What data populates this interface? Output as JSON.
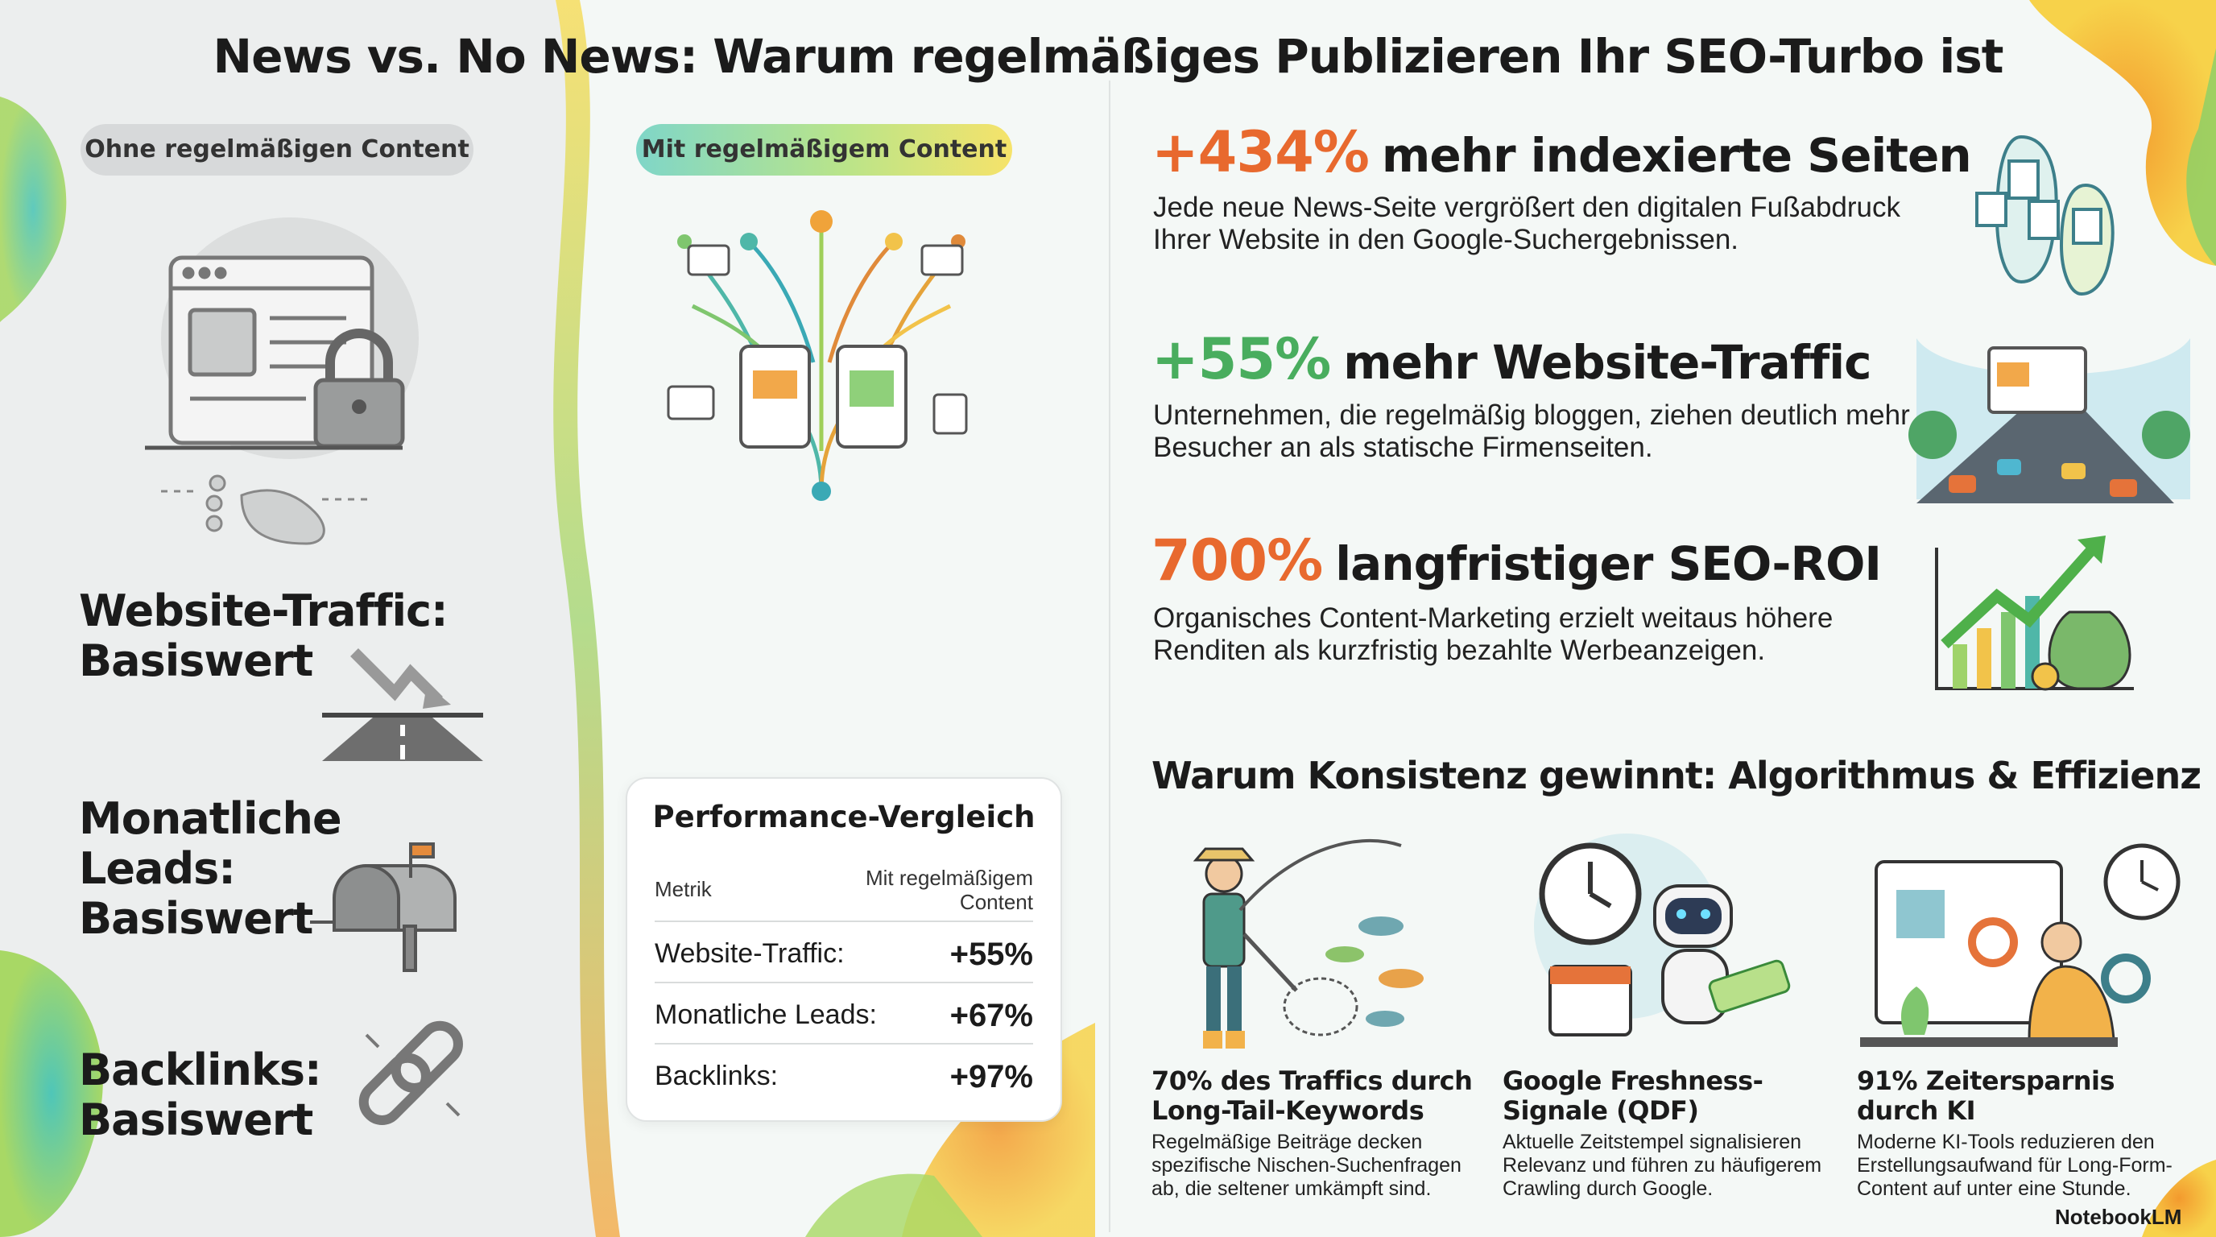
{
  "title": "News vs. No News: Warum regelmäßiges Publizieren Ihr SEO-Turbo ist",
  "left": {
    "badge": "Ohne regelmäßigen Content",
    "items": [
      {
        "label": "Website-Traffic:",
        "value": "Basiswert"
      },
      {
        "label": "Monatliche Leads:",
        "value": "Basiswert"
      },
      {
        "label": "Backlinks:",
        "value": "Basiswert"
      }
    ]
  },
  "middle": {
    "badge": "Mit regelmäßigem Content"
  },
  "table": {
    "title": "Performance-Vergleich",
    "headers": [
      "Metrik",
      "Mit regelmäßigem Content"
    ],
    "rows": [
      [
        "Website-Traffic:",
        "+55%"
      ],
      [
        "Monatliche Leads:",
        "+67%"
      ],
      [
        "Backlinks:",
        "+97%"
      ]
    ]
  },
  "stats": [
    {
      "value": "+434%",
      "heading": "mehr indexierte Seiten",
      "text": "Jede neue News-Seite vergrößert den digitalen Fußabdruck Ihrer Website in den Google-Suchergebnissen."
    },
    {
      "value": "+55%",
      "heading": "mehr Website-Traffic",
      "text": "Unternehmen, die regelmäßig bloggen, ziehen deutlich mehr Besucher an als statische Firmenseiten."
    },
    {
      "value": "700%",
      "heading": "langfristiger SEO-ROI",
      "text": "Organisches Content-Marketing erzielt weitaus höhere Renditen als kurzfristig bezahlte Werbeanzeigen."
    }
  ],
  "section": {
    "heading": "Warum Konsistenz gewinnt: Algorithmus & Effizienz",
    "cards": [
      {
        "title": "70% des Traffics durch Long-Tail-Keywords",
        "text": "Regelmäßige Beiträge decken spezifische Nischen-Suchenfragen ab, die seltener umkämpft sind."
      },
      {
        "title": "Google Freshness-Signale (QDF)",
        "text": "Aktuelle Zeitstempel signalisieren Relevanz und führen zu häufigerem Crawling durch Google."
      },
      {
        "title": "91% Zeitersparnis durch KI",
        "text": "Moderne KI-Tools reduzieren den Erstellungsaufwand für Long-Form-Content auf unter eine Stunde."
      }
    ]
  },
  "footer": "NotebookLM"
}
